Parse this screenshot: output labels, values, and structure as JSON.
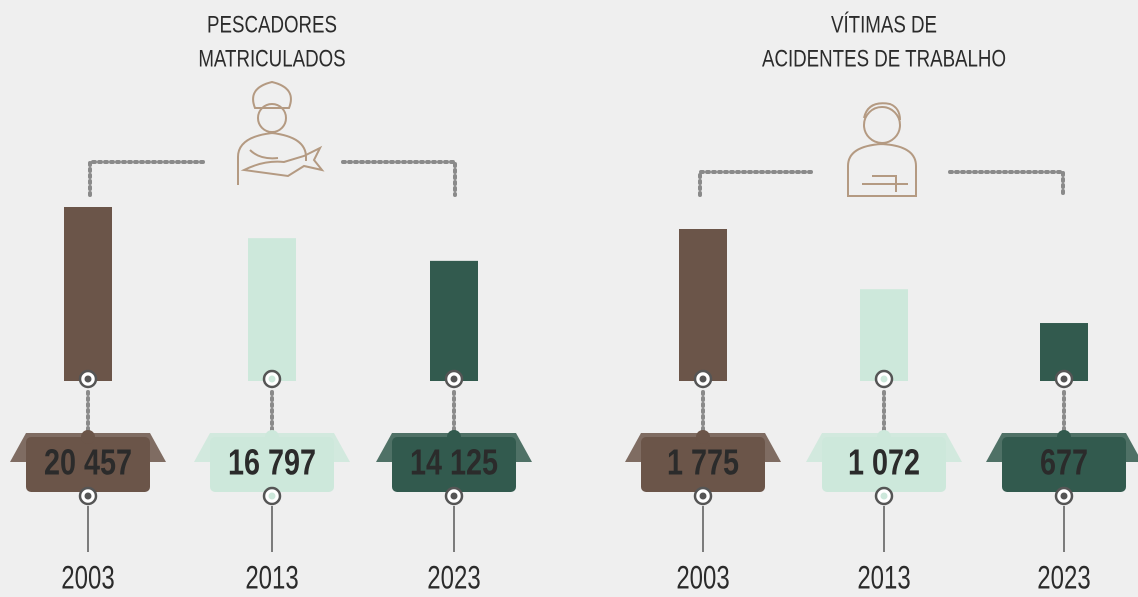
{
  "chart_data": [
    {
      "type": "bar",
      "title": [
        "PESCADORES",
        "MATRICULADOS"
      ],
      "categories": [
        "2003",
        "2013",
        "2023"
      ],
      "values": [
        20457,
        16797,
        14125
      ],
      "value_labels": [
        "20 457",
        "16 797",
        "14 125"
      ],
      "colors": [
        "#6b5549",
        "#cde8db",
        "#325a4e"
      ],
      "label_colors": [
        "#ffffff",
        "#2b2b2b",
        "#ffffff"
      ]
    },
    {
      "type": "bar",
      "title": [
        "VÍTIMAS DE",
        "ACIDENTES DE TRABALHO"
      ],
      "categories": [
        "2003",
        "2013",
        "2023"
      ],
      "values": [
        1775,
        1072,
        677
      ],
      "value_labels": [
        "1 775",
        "1 072",
        "677"
      ],
      "colors": [
        "#6b5549",
        "#cde8db",
        "#325a4e"
      ],
      "label_colors": [
        "#ffffff",
        "#2b2b2b",
        "#ffffff"
      ]
    }
  ]
}
